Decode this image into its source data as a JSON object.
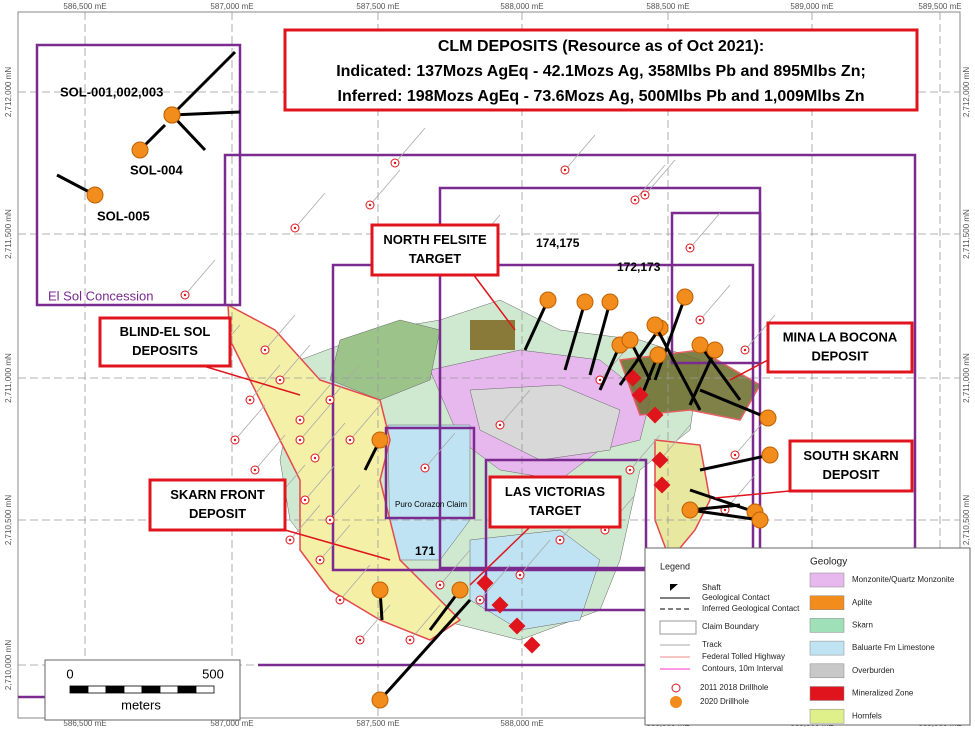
{
  "map": {
    "title_lines": [
      "CLM DEPOSITS (Resource as of Oct 2021):",
      "Indicated: 137Mozs AgEq  - 42.1Mozs Ag, 358Mlbs Pb and 895Mlbs Zn;",
      "Inferred: 198Mozs AgEq  -   73.6Mozs Ag, 500Mlbs Pb and 1,009Mlbs Zn"
    ],
    "eastings": [
      "586,500 mE",
      "587,000 mE",
      "587,500 mE",
      "588,000 mE",
      "588,500 mE",
      "589,000 mE",
      "589,500 mE"
    ],
    "northings": [
      "2,712,000 mN",
      "2,711,500 mN",
      "2,711,000 mN",
      "2,710,500 mN",
      "2,710,000 mN"
    ],
    "drillhole_labels": [
      "SOL-001,002,003",
      "SOL-004",
      "SOL-005",
      "174,175",
      "172,173",
      "171"
    ],
    "concession": "El Sol Concession",
    "claim": "Puro Corazon Claim",
    "targets": [
      {
        "lines": [
          "NORTH FELSITE",
          "TARGET"
        ]
      },
      {
        "lines": [
          "BLIND-EL SOL",
          "DEPOSITS"
        ]
      },
      {
        "lines": [
          "MINA LA BOCONA",
          "DEPOSIT"
        ]
      },
      {
        "lines": [
          "SOUTH SKARN",
          "DEPOSIT"
        ]
      },
      {
        "lines": [
          "SKARN FRONT",
          "DEPOSIT"
        ]
      },
      {
        "lines": [
          "LAS VICTORIAS",
          "TARGET"
        ]
      }
    ],
    "legend": {
      "title": "Legend",
      "items": [
        "Shaft",
        "Geological Contact",
        "Inferred Geological Contact",
        "Claim Boundary",
        "Track",
        "Federal Tolled Highway",
        "Contours, 10m Interval",
        "2011 2018 Drillhole",
        "2020 Drillhole"
      ]
    },
    "geology": {
      "title": "Geology",
      "items": [
        "Monzonite/Quartz Monzonite",
        "Aplite",
        "Skarn",
        "Baluarte Fm Limestone",
        "Overburden",
        "Mineralized Zone",
        "Hornfels"
      ]
    },
    "scale": {
      "start": "0",
      "end": "500",
      "unit": "meters"
    }
  }
}
